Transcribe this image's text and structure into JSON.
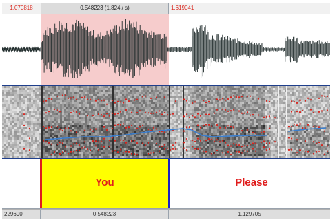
{
  "top_ruler": {
    "left_time": "1.070818",
    "selection_label": "0.548223 (1.824 / s)",
    "right_time": "1.619041"
  },
  "selection": {
    "color": "#f6cccc"
  },
  "tier": {
    "intervals": [
      {
        "text": "You",
        "fill": "#ffff00"
      },
      {
        "text": "Please",
        "fill": "#ffffff"
      }
    ],
    "label_color": "#e01d1d",
    "left_boundary_color": "#e01d1d",
    "right_boundary_color": "#1a22c8"
  },
  "bottom_ruler": {
    "left_value": "229690",
    "middle_value": "0.548223",
    "right_value": "1.129705"
  },
  "colors": {
    "waveform": "#1e2a2a",
    "pitch_track": "#3a7fd0",
    "formants": "#d8231c",
    "divider": "#1f3f8c"
  }
}
